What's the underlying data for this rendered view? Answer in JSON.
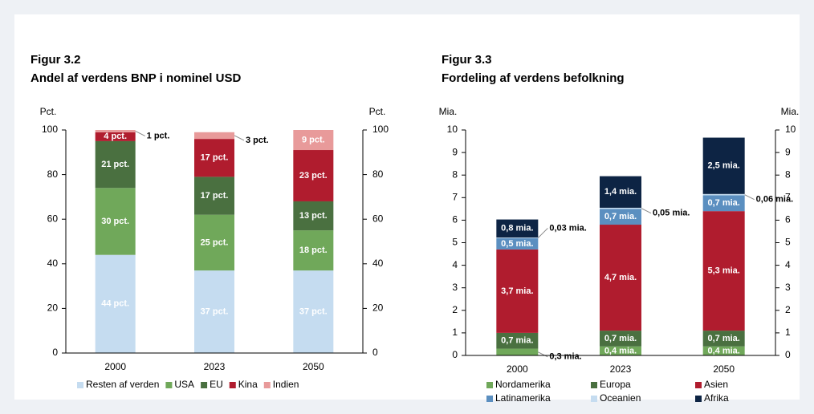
{
  "chart_data": [
    {
      "type": "bar",
      "stacked": true,
      "figure": "Figur 3.2",
      "title": "Andel af verdens BNP i nominel USD",
      "ylabel": "Pct.",
      "categories": [
        "2000",
        "2023",
        "2050"
      ],
      "series": [
        {
          "name": "Resten af verden",
          "color": "#c5dcf0",
          "values": [
            44,
            37,
            37
          ],
          "value_labels": [
            "44 pct.",
            "37 pct.",
            "37 pct."
          ]
        },
        {
          "name": "USA",
          "color": "#70a85a",
          "values": [
            30,
            25,
            18
          ],
          "value_labels": [
            "30 pct.",
            "25 pct.",
            "18 pct."
          ]
        },
        {
          "name": "EU",
          "color": "#4a7040",
          "values": [
            21,
            17,
            13
          ],
          "value_labels": [
            "21 pct.",
            "17 pct.",
            "13 pct."
          ]
        },
        {
          "name": "Kina",
          "color": "#b01c2e",
          "values": [
            4,
            17,
            23
          ],
          "value_labels": [
            "4 pct.",
            "17 pct.",
            "23 pct."
          ]
        },
        {
          "name": "Indien",
          "color": "#e89a9a",
          "values": [
            1,
            3,
            9
          ],
          "value_labels": [
            "1 pct.",
            "3 pct.",
            "9 pct."
          ]
        }
      ],
      "ylim": [
        0,
        100
      ],
      "yticks": [
        0,
        20,
        40,
        60,
        80,
        100
      ],
      "legend": "bottom"
    },
    {
      "type": "bar",
      "stacked": true,
      "figure": "Figur 3.3",
      "title": "Fordeling af verdens befolkning",
      "ylabel": "Mia.",
      "categories": [
        "2000",
        "2023",
        "2050"
      ],
      "series": [
        {
          "name": "Nordamerika",
          "color": "#70a85a",
          "values": [
            0.3,
            0.4,
            0.4
          ],
          "value_labels": [
            "0,3 mia.",
            "0,4 mia.",
            "0,4 mia."
          ]
        },
        {
          "name": "Europa",
          "color": "#4a7040",
          "values": [
            0.7,
            0.7,
            0.7
          ],
          "value_labels": [
            "0,7 mia.",
            "0,7 mia.",
            "0,7 mia."
          ]
        },
        {
          "name": "Asien",
          "color": "#b01c2e",
          "values": [
            3.7,
            4.7,
            5.3
          ],
          "value_labels": [
            "3,7 mia.",
            "4,7 mia.",
            "5,3 mia."
          ]
        },
        {
          "name": "Latinamerika",
          "color": "#5b8fc0",
          "values": [
            0.5,
            0.7,
            0.7
          ],
          "value_labels": [
            "0,5 mia.",
            "0,7 mia.",
            "0,7 mia."
          ]
        },
        {
          "name": "Oceanien",
          "color": "#c5dcf0",
          "values": [
            0.03,
            0.05,
            0.06
          ],
          "value_labels": [
            "0,03 mia.",
            "0,05 mia.",
            "0,06 mia."
          ]
        },
        {
          "name": "Afrika",
          "color": "#0d2444",
          "values": [
            0.8,
            1.4,
            2.5
          ],
          "value_labels": [
            "0,8 mia.",
            "1,4 mia.",
            "2,5 mia."
          ]
        }
      ],
      "ylim": [
        0,
        10
      ],
      "yticks": [
        0,
        1,
        2,
        3,
        4,
        5,
        6,
        7,
        8,
        9,
        10
      ],
      "legend": "bottom"
    }
  ]
}
